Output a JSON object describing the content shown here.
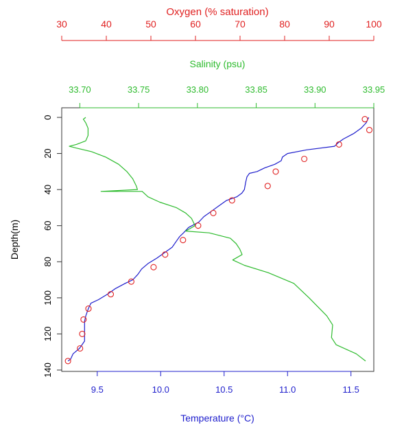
{
  "chart_data": {
    "type": "line",
    "title": "",
    "ylabel": "Depth(m)",
    "ylim": [
      0,
      140
    ],
    "yticks": [
      0,
      20,
      40,
      60,
      80,
      100,
      120,
      140
    ],
    "y_reversed": true,
    "grid": false,
    "axes": {
      "temperature": {
        "label": "Temperature (°C)",
        "position": "bottom",
        "color": "#1c1ccc",
        "range": [
          9.22,
          11.68
        ],
        "ticks": [
          9.5,
          10.0,
          10.5,
          11.0,
          11.5
        ],
        "tick_labels": [
          "9.5",
          "10.0",
          "10.5",
          "11.0",
          "11.5"
        ]
      },
      "salinity": {
        "label": "Salinity (psu)",
        "position": "top",
        "color": "#2dbb2d",
        "range": [
          33.6846,
          33.95
        ],
        "ticks": [
          33.7,
          33.75,
          33.8,
          33.85,
          33.9,
          33.95
        ],
        "tick_labels": [
          "33.70",
          "33.75",
          "33.80",
          "33.85",
          "33.90",
          "33.95"
        ]
      },
      "oxygen": {
        "label": "Oxygen (% saturation)",
        "position": "top-outer",
        "color": "#e02020",
        "range": [
          30,
          100
        ],
        "ticks": [
          30,
          40,
          50,
          60,
          70,
          80,
          90,
          100
        ],
        "tick_labels": [
          "30",
          "40",
          "50",
          "60",
          "70",
          "80",
          "90",
          "100"
        ]
      }
    },
    "series": [
      {
        "axis": "temperature",
        "style": "line",
        "color": "#1c1ccc",
        "points": [
          [
            11.64,
            0
          ],
          [
            11.62,
            3
          ],
          [
            11.58,
            6
          ],
          [
            11.52,
            9
          ],
          [
            11.44,
            12
          ],
          [
            11.4,
            14
          ],
          [
            11.37,
            16
          ],
          [
            11.15,
            18
          ],
          [
            11.0,
            20
          ],
          [
            10.96,
            22
          ],
          [
            10.95,
            24
          ],
          [
            10.9,
            26
          ],
          [
            10.82,
            28
          ],
          [
            10.76,
            30
          ],
          [
            10.7,
            31
          ],
          [
            10.68,
            33
          ],
          [
            10.67,
            36
          ],
          [
            10.66,
            40
          ],
          [
            10.64,
            42
          ],
          [
            10.6,
            44
          ],
          [
            10.52,
            46
          ],
          [
            10.46,
            49
          ],
          [
            10.4,
            52
          ],
          [
            10.34,
            55
          ],
          [
            10.3,
            58
          ],
          [
            10.22,
            61
          ],
          [
            10.18,
            64
          ],
          [
            10.15,
            66
          ],
          [
            10.13,
            68
          ],
          [
            10.09,
            72
          ],
          [
            10.03,
            75
          ],
          [
            9.97,
            78
          ],
          [
            9.9,
            81
          ],
          [
            9.85,
            84
          ],
          [
            9.82,
            87
          ],
          [
            9.78,
            90
          ],
          [
            9.72,
            92
          ],
          [
            9.64,
            95
          ],
          [
            9.58,
            98
          ],
          [
            9.51,
            101
          ],
          [
            9.45,
            103
          ],
          [
            9.43,
            106
          ],
          [
            9.41,
            110
          ],
          [
            9.4,
            113
          ],
          [
            9.4,
            118
          ],
          [
            9.4,
            124
          ],
          [
            9.36,
            128
          ],
          [
            9.31,
            131
          ],
          [
            9.29,
            134
          ],
          [
            9.27,
            135
          ]
        ]
      },
      {
        "axis": "salinity",
        "style": "line",
        "color": "#2dbb2d",
        "points": [
          [
            33.705,
            0
          ],
          [
            33.703,
            1
          ],
          [
            33.705,
            3
          ],
          [
            33.707,
            6
          ],
          [
            33.707,
            10
          ],
          [
            33.705,
            13
          ],
          [
            33.697,
            15
          ],
          [
            33.691,
            16
          ],
          [
            33.697,
            17
          ],
          [
            33.71,
            19
          ],
          [
            33.722,
            22
          ],
          [
            33.733,
            26
          ],
          [
            33.74,
            30
          ],
          [
            33.745,
            34
          ],
          [
            33.748,
            38
          ],
          [
            33.749,
            40
          ],
          [
            33.718,
            41
          ],
          [
            33.753,
            41
          ],
          [
            33.758,
            44
          ],
          [
            33.768,
            47
          ],
          [
            33.782,
            50
          ],
          [
            33.79,
            53
          ],
          [
            33.795,
            56
          ],
          [
            33.798,
            60
          ],
          [
            33.79,
            63
          ],
          [
            33.81,
            64
          ],
          [
            33.828,
            67
          ],
          [
            33.833,
            70
          ],
          [
            33.836,
            73
          ],
          [
            33.838,
            76
          ],
          [
            33.83,
            79
          ],
          [
            33.84,
            82
          ],
          [
            33.86,
            86
          ],
          [
            33.882,
            92
          ],
          [
            33.895,
            100
          ],
          [
            33.91,
            110
          ],
          [
            33.915,
            115
          ],
          [
            33.914,
            122
          ],
          [
            33.918,
            126
          ],
          [
            33.935,
            131
          ],
          [
            33.943,
            135
          ]
        ]
      },
      {
        "axis": "oxygen",
        "style": "points",
        "color": "#e02020",
        "points": [
          [
            98.0,
            1
          ],
          [
            99.0,
            7
          ],
          [
            92.2,
            15
          ],
          [
            84.4,
            23
          ],
          [
            78.0,
            30
          ],
          [
            76.2,
            38
          ],
          [
            68.2,
            46
          ],
          [
            64.0,
            53
          ],
          [
            60.6,
            60
          ],
          [
            57.2,
            68
          ],
          [
            53.2,
            76
          ],
          [
            50.6,
            83
          ],
          [
            45.6,
            91
          ],
          [
            41.0,
            98
          ],
          [
            36.0,
            106
          ],
          [
            34.9,
            112
          ],
          [
            34.6,
            120
          ],
          [
            34.1,
            128
          ],
          [
            31.4,
            135
          ]
        ]
      }
    ]
  }
}
